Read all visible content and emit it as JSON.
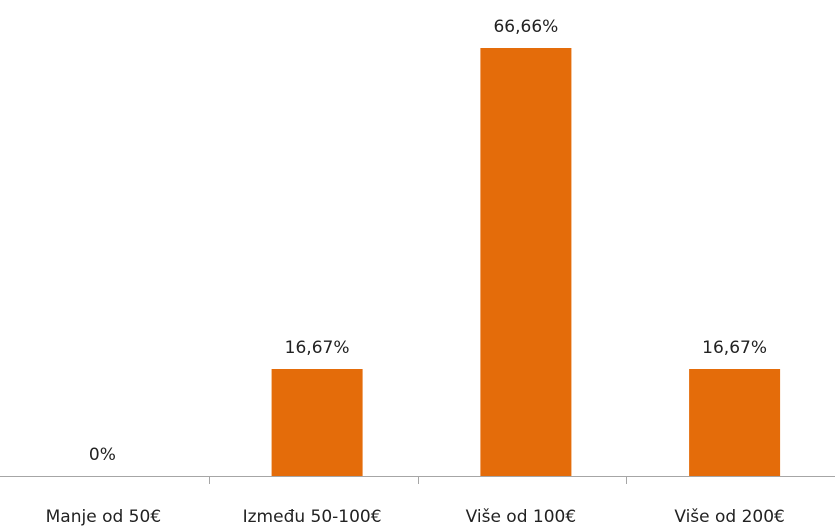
{
  "chart_data": {
    "type": "bar",
    "title": "",
    "xlabel": "",
    "ylabel": "",
    "categories": [
      "Manje od 50€",
      "Između 50-100€",
      "Više od 100€",
      "Više od 200€"
    ],
    "values": [
      0,
      16.67,
      66.66,
      16.67
    ],
    "value_labels": [
      "0%",
      "16,67%",
      "66,66%",
      "16,67%"
    ],
    "ylim": [
      0,
      70
    ],
    "grid": false,
    "legend": "none",
    "colors": {
      "bar": "#E46C0A",
      "axis": "#A6A6A6",
      "text": "#222222"
    }
  }
}
